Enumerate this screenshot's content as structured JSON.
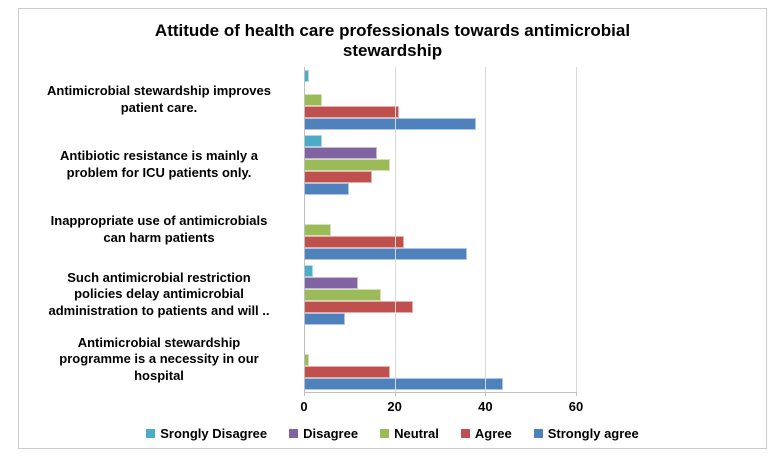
{
  "chart_data": {
    "type": "bar",
    "orientation": "horizontal",
    "title": "Attitude of health care professionals towards antimicrobial\nstewardship",
    "categories": [
      "Antimicrobial stewardship improves\npatient care.",
      "Antibiotic resistance is mainly a\nproblem for ICU patients only.",
      "Inappropriate use of antimicrobials\ncan harm patients",
      "Such antimicrobial restriction\npolicies delay antimicrobial\nadministration to patients and will ..",
      "Antimicrobial stewardship\nprogramme is a necessity in our\nhospital"
    ],
    "series": [
      {
        "name": "Srongly Disagree",
        "color": "#4BACC6",
        "values": [
          1,
          4,
          0,
          2,
          0
        ]
      },
      {
        "name": "Disagree",
        "color": "#8064A2",
        "values": [
          0,
          16,
          0,
          12,
          0
        ]
      },
      {
        "name": "Neutral",
        "color": "#9BBB59",
        "values": [
          4,
          19,
          6,
          17,
          1
        ]
      },
      {
        "name": "Agree",
        "color": "#C0504D",
        "values": [
          21,
          15,
          22,
          24,
          19
        ]
      },
      {
        "name": "Strongly agree",
        "color": "#4F81BD",
        "values": [
          38,
          10,
          36,
          9,
          44
        ]
      }
    ],
    "xlim": [
      0,
      60
    ],
    "xticks": [
      0,
      20,
      40,
      60
    ],
    "xlabel": "",
    "ylabel": "",
    "grid": true,
    "gridline_color": "#D9D9D9",
    "axis_color": "#BFBFBF",
    "legend_position": "bottom"
  }
}
